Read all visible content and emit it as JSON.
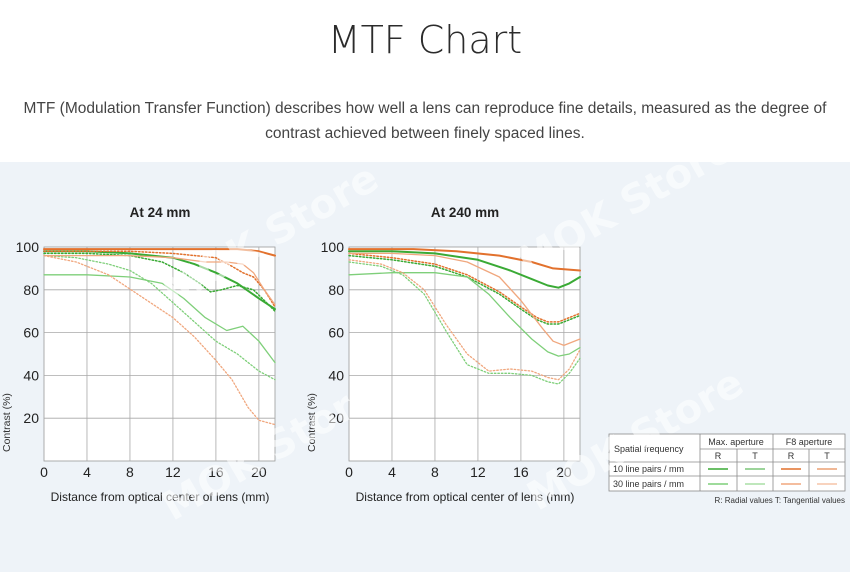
{
  "page": {
    "title": "MTF Chart",
    "description": "MTF (Modulation Transfer Function) describes how well a lens can reproduce fine details, measured as the degree of contrast achieved between finely spaced lines.",
    "watermark": "MOK Store"
  },
  "legend": {
    "row_header": "Spatial frequency",
    "group1": "Max. aperture",
    "group2": "F8 aperture",
    "sub_r": "R",
    "sub_t": "T",
    "row1": "10 line pairs / mm",
    "row2": "30 line pairs / mm",
    "footnote": "R: Radial values  T: Tangential values",
    "colors": {
      "max_10": "#3aaa35",
      "max_30": "#7fcf7a",
      "f8_10": "#e2712d",
      "f8_30": "#f0a77e"
    }
  },
  "chart_data": [
    {
      "type": "line",
      "title": "At 24 mm",
      "xlabel": "Distance from optical center of lens (mm)",
      "ylabel": "Contrast (%)",
      "xlim": [
        0,
        21.5
      ],
      "ylim": [
        0,
        100
      ],
      "xticks": [
        0,
        4,
        8,
        12,
        16,
        20
      ],
      "yticks": [
        20,
        40,
        60,
        80,
        100
      ],
      "grid": true,
      "series": [
        {
          "name": "Max. aperture 10 lp/mm R",
          "color": "#3aaa35",
          "dash": "solid",
          "width": 2,
          "x": [
            0,
            4,
            8,
            12,
            14,
            16,
            18,
            20,
            21.5
          ],
          "y": [
            98,
            98,
            97,
            95,
            92,
            88,
            83,
            76,
            71
          ]
        },
        {
          "name": "Max. aperture 10 lp/mm T",
          "color": "#3aaa35",
          "dash": "dotted",
          "width": 1.5,
          "x": [
            0,
            4,
            8,
            11,
            13,
            14.5,
            15.5,
            16.5,
            18,
            19.5,
            20.5,
            21.5
          ],
          "y": [
            97,
            97,
            96,
            93,
            88,
            83,
            79,
            80,
            82,
            80,
            75,
            70
          ]
        },
        {
          "name": "Max. aperture 30 lp/mm R",
          "color": "#7fcf7a",
          "dash": "solid",
          "width": 1.3,
          "x": [
            0,
            4,
            8,
            11,
            13,
            15,
            17,
            18.5,
            20,
            21.5
          ],
          "y": [
            87,
            87,
            86,
            83,
            76,
            67,
            61,
            63,
            56,
            46
          ]
        },
        {
          "name": "Max. aperture 30 lp/mm T",
          "color": "#7fcf7a",
          "dash": "dotted",
          "width": 1.3,
          "x": [
            0,
            3,
            6,
            8,
            10,
            12,
            14,
            16,
            18,
            20,
            21.5
          ],
          "y": [
            96,
            95,
            92,
            89,
            83,
            74,
            65,
            56,
            50,
            42,
            38
          ]
        },
        {
          "name": "F8 aperture 10 lp/mm R",
          "color": "#e2712d",
          "dash": "solid",
          "width": 2,
          "x": [
            0,
            8,
            12,
            16,
            18,
            20,
            21.5
          ],
          "y": [
            99,
            99,
            99,
            99,
            99,
            98,
            96
          ]
        },
        {
          "name": "F8 aperture 10 lp/mm T",
          "color": "#e2712d",
          "dash": "dotted",
          "width": 1.5,
          "x": [
            0,
            8,
            12,
            16,
            17.5,
            18.5,
            19.5,
            20.5,
            21.5
          ],
          "y": [
            98,
            98,
            97,
            95,
            91,
            88,
            86,
            80,
            72
          ]
        },
        {
          "name": "F8 aperture 30 lp/mm R",
          "color": "#f0a77e",
          "dash": "solid",
          "width": 1.3,
          "x": [
            0,
            8,
            12,
            15,
            17,
            18.5,
            19.5,
            20.5,
            21.5
          ],
          "y": [
            96,
            96,
            95,
            93,
            93,
            92,
            88,
            80,
            73
          ]
        },
        {
          "name": "F8 aperture 30 lp/mm T",
          "color": "#f0a77e",
          "dash": "dotted",
          "width": 1.3,
          "x": [
            0,
            3,
            6,
            9,
            12,
            14,
            16,
            17.5,
            19,
            20,
            21.5
          ],
          "y": [
            96,
            93,
            87,
            77,
            67,
            58,
            47,
            38,
            25,
            19,
            17
          ]
        }
      ]
    },
    {
      "type": "line",
      "title": "At 240 mm",
      "xlabel": "Distance from optical center of lens (mm)",
      "ylabel": "Contrast (%)",
      "xlim": [
        0,
        21.5
      ],
      "ylim": [
        0,
        100
      ],
      "xticks": [
        0,
        4,
        8,
        12,
        16,
        20
      ],
      "yticks": [
        20,
        40,
        60,
        80,
        100
      ],
      "grid": true,
      "series": [
        {
          "name": "Max. aperture 10 lp/mm R",
          "color": "#3aaa35",
          "dash": "solid",
          "width": 2,
          "x": [
            0,
            4,
            8,
            12,
            15,
            17,
            18.5,
            19.5,
            20.5,
            21.5
          ],
          "y": [
            98,
            98,
            97,
            94,
            89,
            85,
            82,
            81,
            83,
            86
          ]
        },
        {
          "name": "Max. aperture 10 lp/mm T",
          "color": "#3aaa35",
          "dash": "dotted",
          "width": 1.5,
          "x": [
            0,
            4,
            8,
            11,
            14,
            16,
            17.5,
            18.5,
            19.5,
            20.5,
            21.5
          ],
          "y": [
            96,
            94,
            91,
            86,
            78,
            71,
            66,
            64,
            64,
            66,
            68
          ]
        },
        {
          "name": "Max. aperture 30 lp/mm R",
          "color": "#7fcf7a",
          "dash": "solid",
          "width": 1.3,
          "x": [
            0,
            4,
            8,
            11,
            13,
            15,
            17,
            18.5,
            19.5,
            20.5,
            21.5
          ],
          "y": [
            87,
            88,
            88,
            86,
            78,
            67,
            57,
            51,
            49,
            50,
            53
          ]
        },
        {
          "name": "Max. aperture 30 lp/mm T",
          "color": "#7fcf7a",
          "dash": "dotted",
          "width": 1.3,
          "x": [
            0,
            3,
            5,
            7,
            9,
            11,
            13,
            15,
            17,
            18.5,
            19.5,
            20.5,
            21.5
          ],
          "y": [
            93,
            91,
            87,
            78,
            61,
            45,
            41,
            41,
            40,
            37,
            36,
            41,
            48
          ]
        },
        {
          "name": "F8 aperture 10 lp/mm R",
          "color": "#e2712d",
          "dash": "solid",
          "width": 2,
          "x": [
            0,
            6,
            10,
            14,
            17,
            19,
            21.5
          ],
          "y": [
            99,
            99,
            98,
            96,
            93,
            90,
            89
          ]
        },
        {
          "name": "F8 aperture 10 lp/mm T",
          "color": "#e2712d",
          "dash": "dotted",
          "width": 1.5,
          "x": [
            0,
            4,
            8,
            11,
            14,
            16,
            17.5,
            18.5,
            19.5,
            20.5,
            21.5
          ],
          "y": [
            97,
            95,
            92,
            87,
            79,
            72,
            67,
            65,
            65,
            67,
            69
          ]
        },
        {
          "name": "F8 aperture 30 lp/mm R",
          "color": "#f0a77e",
          "dash": "solid",
          "width": 1.3,
          "x": [
            0,
            4,
            8,
            11,
            14,
            16,
            18,
            19,
            20,
            21.5
          ],
          "y": [
            97,
            97,
            96,
            93,
            86,
            75,
            62,
            56,
            54,
            57
          ]
        },
        {
          "name": "F8 aperture 30 lp/mm T",
          "color": "#f0a77e",
          "dash": "dotted",
          "width": 1.3,
          "x": [
            0,
            3,
            5,
            7,
            9,
            11,
            13,
            15,
            17,
            18.5,
            19.5,
            20.5,
            21.5
          ],
          "y": [
            94,
            92,
            88,
            80,
            64,
            50,
            42,
            43,
            42,
            39,
            38,
            43,
            52
          ]
        }
      ]
    }
  ]
}
